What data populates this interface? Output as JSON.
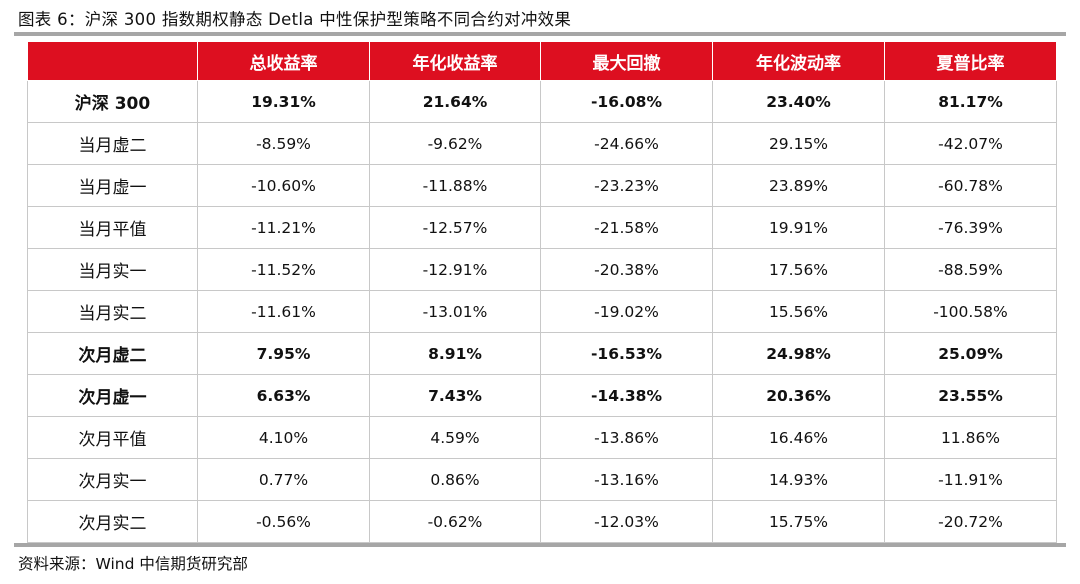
{
  "caption": "图表 6：沪深 300 指数期权静态 Detla 中性保护型策略不同合约对冲效果",
  "table": {
    "headers": [
      "",
      "总收益率",
      "年化收益率",
      "最大回撤",
      "年化波动率",
      "夏普比率"
    ],
    "rows": [
      {
        "name": "沪深 300",
        "bold": true,
        "values": [
          "19.31%",
          "21.64%",
          "-16.08%",
          "23.40%",
          "81.17%"
        ]
      },
      {
        "name": "当月虚二",
        "bold": false,
        "values": [
          "-8.59%",
          "-9.62%",
          "-24.66%",
          "29.15%",
          "-42.07%"
        ]
      },
      {
        "name": "当月虚一",
        "bold": false,
        "values": [
          "-10.60%",
          "-11.88%",
          "-23.23%",
          "23.89%",
          "-60.78%"
        ]
      },
      {
        "name": "当月平值",
        "bold": false,
        "values": [
          "-11.21%",
          "-12.57%",
          "-21.58%",
          "19.91%",
          "-76.39%"
        ]
      },
      {
        "name": "当月实一",
        "bold": false,
        "values": [
          "-11.52%",
          "-12.91%",
          "-20.38%",
          "17.56%",
          "-88.59%"
        ]
      },
      {
        "name": "当月实二",
        "bold": false,
        "values": [
          "-11.61%",
          "-13.01%",
          "-19.02%",
          "15.56%",
          "-100.58%"
        ]
      },
      {
        "name": "次月虚二",
        "bold": true,
        "values": [
          "7.95%",
          "8.91%",
          "-16.53%",
          "24.98%",
          "25.09%"
        ]
      },
      {
        "name": "次月虚一",
        "bold": true,
        "values": [
          "6.63%",
          "7.43%",
          "-14.38%",
          "20.36%",
          "23.55%"
        ]
      },
      {
        "name": "次月平值",
        "bold": false,
        "values": [
          "4.10%",
          "4.59%",
          "-13.86%",
          "16.46%",
          "11.86%"
        ]
      },
      {
        "name": "次月实一",
        "bold": false,
        "values": [
          "0.77%",
          "0.86%",
          "-13.16%",
          "14.93%",
          "-11.91%"
        ]
      },
      {
        "name": "次月实二",
        "bold": false,
        "values": [
          "-0.56%",
          "-0.62%",
          "-12.03%",
          "15.75%",
          "-20.72%"
        ]
      }
    ]
  },
  "source": "资料来源：Wind 中信期货研究部",
  "colors": {
    "header_bg": "#dd0f20",
    "header_text": "#ffffff",
    "rule": "#a6a6a6"
  }
}
